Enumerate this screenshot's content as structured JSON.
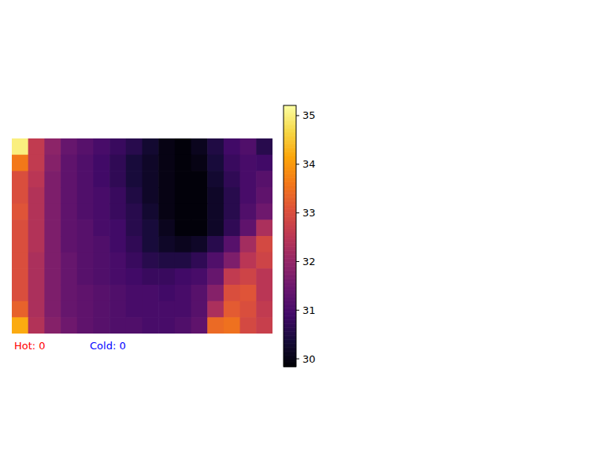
{
  "chart_data": {
    "type": "heatmap",
    "tick_labels": false,
    "cells": [
      [
        35.0,
        32.6,
        31.9,
        31.4,
        31.2,
        31.0,
        30.8,
        30.6,
        30.3,
        30.0,
        29.9,
        30.1,
        30.5,
        30.9,
        31.1,
        30.6
      ],
      [
        33.6,
        32.6,
        31.8,
        31.3,
        31.1,
        30.9,
        30.7,
        30.4,
        30.2,
        30.0,
        29.9,
        30.0,
        30.4,
        30.8,
        31.0,
        30.9
      ],
      [
        33.0,
        32.5,
        31.7,
        31.3,
        31.1,
        30.9,
        30.7,
        30.4,
        30.2,
        30.0,
        29.9,
        29.9,
        30.3,
        30.7,
        31.0,
        31.2
      ],
      [
        33.0,
        32.4,
        31.7,
        31.3,
        31.1,
        31.0,
        30.8,
        30.5,
        30.2,
        30.0,
        29.9,
        29.9,
        30.2,
        30.6,
        31.0,
        31.3
      ],
      [
        33.1,
        32.4,
        31.7,
        31.3,
        31.1,
        31.0,
        30.8,
        30.6,
        30.3,
        30.0,
        29.9,
        29.9,
        30.2,
        30.6,
        31.1,
        31.5
      ],
      [
        33.0,
        32.4,
        31.7,
        31.3,
        31.2,
        31.0,
        30.9,
        30.6,
        30.4,
        30.1,
        29.9,
        29.9,
        30.2,
        30.7,
        31.3,
        32.3
      ],
      [
        33.0,
        32.4,
        31.7,
        31.3,
        31.2,
        31.1,
        30.9,
        30.7,
        30.4,
        30.2,
        30.1,
        30.2,
        30.6,
        31.2,
        32.2,
        32.9
      ],
      [
        33.0,
        32.3,
        31.7,
        31.4,
        31.2,
        31.1,
        31.0,
        30.8,
        30.6,
        30.5,
        30.5,
        30.7,
        31.1,
        31.7,
        32.5,
        32.8
      ],
      [
        33.0,
        32.3,
        31.7,
        31.4,
        31.2,
        31.1,
        31.0,
        30.9,
        30.8,
        30.8,
        30.9,
        31.0,
        31.4,
        32.6,
        32.8,
        32.5
      ],
      [
        33.0,
        32.3,
        31.7,
        31.4,
        31.3,
        31.2,
        31.1,
        31.0,
        31.0,
        30.9,
        31.0,
        31.2,
        31.8,
        33.0,
        33.1,
        32.5
      ],
      [
        33.3,
        32.3,
        31.7,
        31.4,
        31.3,
        31.2,
        31.1,
        31.0,
        31.0,
        31.0,
        31.0,
        31.2,
        32.3,
        33.2,
        33.0,
        32.6
      ],
      [
        34.2,
        32.4,
        31.8,
        31.5,
        31.3,
        31.2,
        31.1,
        31.1,
        31.0,
        31.0,
        31.1,
        31.3,
        33.4,
        33.5,
        32.9,
        32.7
      ]
    ],
    "colorbar": {
      "range": [
        29.84,
        35.21
      ],
      "ticks": [
        30,
        31,
        32,
        33,
        34,
        35
      ]
    },
    "annotations": [
      "Hot: 0",
      "Cold: 0"
    ]
  }
}
